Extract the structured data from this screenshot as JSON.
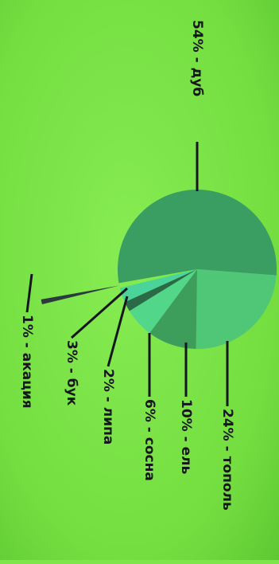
{
  "chart_data": {
    "type": "pie",
    "orientation": "rotated-90-clockwise",
    "slices": [
      {
        "label": "54% - дуб",
        "value": 54,
        "color": "#3a9e63"
      },
      {
        "label": "24% - тополь",
        "value": 24,
        "color": "#4fc777"
      },
      {
        "label": "10% - ель",
        "value": 10,
        "color": "#3d9e5c"
      },
      {
        "label": "6% - сосна",
        "value": 6,
        "color": "#52d68a"
      },
      {
        "label": "2% - липа",
        "value": 2,
        "color": "#2a6a46"
      },
      {
        "label": "3% - бук",
        "value": 3,
        "color": "#4ad49a"
      },
      {
        "label": "1% - акация",
        "value": 1,
        "color": "#2b3a3c"
      }
    ]
  }
}
